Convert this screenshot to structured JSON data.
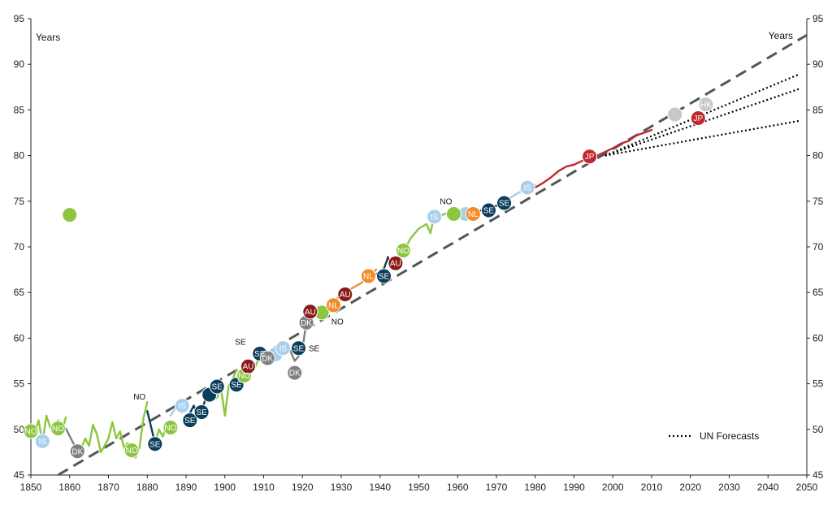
{
  "chart_data": {
    "type": "line",
    "title": "",
    "xlabel": "",
    "ylabel_left": "Years",
    "ylabel_right": "Years",
    "xlim": [
      1850,
      2050
    ],
    "ylim": [
      45,
      95
    ],
    "x_ticks": [
      "1850",
      "1860",
      "1870",
      "1880",
      "1890",
      "1900",
      "1910",
      "1920",
      "1930",
      "1940",
      "1950",
      "1960",
      "1970",
      "1980",
      "1990",
      "2000",
      "2010",
      "2020",
      "2030",
      "2040",
      "2050"
    ],
    "y_ticks_left": [
      "45",
      "50",
      "55",
      "60",
      "65",
      "70",
      "75",
      "80",
      "85",
      "90",
      "95"
    ],
    "y_ticks_right": [
      "45",
      "50",
      "55",
      "60",
      "65",
      "70",
      "75",
      "80",
      "85",
      "90",
      "95"
    ],
    "grid": false,
    "legend": {
      "position": "bottom-right",
      "label": "UN Forecasts"
    },
    "colors": {
      "NO": "#8cc63f",
      "IS": "#a9cfec",
      "DK": "#808080",
      "SE": "#0b3d5c",
      "AU": "#8b1a1a",
      "NL": "#f28c28",
      "JP": "#c0282d",
      "HK": "#c8c8c8",
      "trend": "#555555",
      "forecast": "#000000"
    },
    "series": [
      {
        "name": "NO",
        "x": [
          1850,
          1851,
          1852,
          1853,
          1854,
          1855,
          1856,
          1857,
          1858,
          1859
        ],
        "y": [
          50.0,
          49.6,
          51.0,
          48.5,
          51.5,
          50.2,
          50.0,
          51.0,
          49.8,
          51.3
        ]
      },
      {
        "name": "DK",
        "x": [
          1859,
          1862
        ],
        "y": [
          50.1,
          47.6
        ]
      },
      {
        "name": "NO",
        "x": [
          1862,
          1863,
          1864,
          1865,
          1866,
          1867,
          1868,
          1869,
          1870,
          1871,
          1872,
          1873,
          1874,
          1875,
          1876,
          1877,
          1878,
          1879,
          1880
        ],
        "y": [
          47.6,
          48.0,
          49.0,
          48.2,
          50.5,
          49.5,
          47.5,
          48.2,
          49.0,
          50.8,
          49.0,
          49.8,
          48.0,
          48.5,
          47.8,
          46.9,
          48.0,
          51.2,
          53.0
        ]
      },
      {
        "name": "SE",
        "x": [
          1880,
          1882
        ],
        "y": [
          52.0,
          48.5
        ]
      },
      {
        "name": "NO",
        "x": [
          1882,
          1883,
          1884,
          1885,
          1886
        ],
        "y": [
          48.5,
          50.0,
          49.2,
          50.5,
          50.3
        ]
      },
      {
        "name": "IS",
        "x": [
          1886,
          1888,
          1889,
          1890
        ],
        "y": [
          51.5,
          52.8,
          51.8,
          52.5
        ]
      },
      {
        "name": "SE",
        "x": [
          1890,
          1891,
          1892,
          1893,
          1894,
          1895,
          1896
        ],
        "y": [
          51.2,
          51.8,
          52.6,
          51.5,
          52.0,
          53.3,
          54.0
        ]
      },
      {
        "name": "NO",
        "x": [
          1896,
          1897,
          1898,
          1899,
          1900,
          1901,
          1902,
          1903
        ],
        "y": [
          54.0,
          53.2,
          53.5,
          54.5,
          51.5,
          54.8,
          55.5,
          56.5
        ]
      },
      {
        "name": "SE",
        "x": [
          1903,
          1904,
          1905,
          1906,
          1907
        ],
        "y": [
          55.0,
          55.5,
          56.5,
          57.0,
          56.4
        ]
      },
      {
        "name": "NO",
        "x": [
          1907,
          1908,
          1909
        ],
        "y": [
          56.4,
          57.0,
          58.2
        ]
      },
      {
        "name": "SE",
        "x": [
          1909,
          1910,
          1911
        ],
        "y": [
          58.3,
          57.5,
          58.4
        ]
      },
      {
        "name": "IS",
        "x": [
          1911,
          1912,
          1913,
          1914,
          1915
        ],
        "y": [
          58.4,
          57.6,
          58.5,
          57.8,
          58.9
        ]
      },
      {
        "name": "DK",
        "x": [
          1915,
          1916,
          1917,
          1918,
          1919
        ],
        "y": [
          58.9,
          59.5,
          58.5,
          57.5,
          58.0
        ]
      },
      {
        "name": "SE",
        "x": [
          1918,
          1919,
          1920
        ],
        "y": [
          58.5,
          59.2,
          58.8
        ]
      },
      {
        "name": "DK",
        "x": [
          1920,
          1921
        ],
        "y": [
          58.8,
          61.8
        ]
      },
      {
        "name": "NO",
        "x": [
          1921,
          1922,
          1924,
          1926,
          1927
        ],
        "y": [
          62.6,
          62.9,
          63.2,
          62.6,
          62.9
        ]
      },
      {
        "name": "AU",
        "x": [
          1921,
          1923,
          1925,
          1927
        ],
        "y": [
          63.0,
          63.1,
          62.9,
          63.0
        ]
      },
      {
        "name": "NL",
        "x": [
          1927,
          1930,
          1935,
          1937,
          1939
        ],
        "y": [
          63.5,
          64.8,
          66.0,
          66.8,
          67.5
        ]
      },
      {
        "name": "SE",
        "x": [
          1939,
          1941,
          1942
        ],
        "y": [
          67.0,
          67.6,
          68.8
        ]
      },
      {
        "name": "AU",
        "x": [
          1942,
          1943,
          1944
        ],
        "y": [
          68.9,
          67.8,
          68.2
        ]
      },
      {
        "name": "NO",
        "x": [
          1944,
          1946,
          1948,
          1950,
          1952,
          1953,
          1954,
          1955,
          1956,
          1958,
          1960
        ],
        "y": [
          68.2,
          69.5,
          71.0,
          72.0,
          72.5,
          71.5,
          73.5,
          73.0,
          73.5,
          73.8,
          73.6
        ]
      },
      {
        "name": "IS",
        "x": [
          1960,
          1961,
          1962
        ],
        "y": [
          73.6,
          73.8,
          73.7
        ]
      },
      {
        "name": "NL",
        "x": [
          1962,
          1963,
          1964
        ],
        "y": [
          73.7,
          73.6,
          73.9
        ]
      },
      {
        "name": "SE",
        "x": [
          1964,
          1967,
          1970,
          1972
        ],
        "y": [
          73.9,
          74.0,
          74.5,
          74.8
        ]
      },
      {
        "name": "IS",
        "x": [
          1972,
          1974,
          1976,
          1978,
          1980
        ],
        "y": [
          74.8,
          75.5,
          76.0,
          76.5,
          76.8
        ]
      },
      {
        "name": "JP",
        "x": [
          1980,
          1982,
          1984,
          1986,
          1988,
          1990,
          1992,
          1994,
          1996,
          1998,
          2000,
          2002,
          2004,
          2006,
          2008,
          2010
        ],
        "y": [
          76.5,
          77.0,
          77.6,
          78.3,
          78.8,
          79.0,
          79.4,
          79.6,
          80.0,
          80.4,
          80.8,
          81.3,
          81.6,
          82.2,
          82.5,
          82.8
        ]
      }
    ],
    "markers": [
      {
        "label": "NO",
        "series": "NO",
        "x": 1850,
        "y": 49.8
      },
      {
        "label": "IS",
        "series": "IS",
        "x": 1853,
        "y": 48.7
      },
      {
        "label": "NO",
        "series": "NO",
        "x": 1857,
        "y": 50.1
      },
      {
        "label": "DK",
        "series": "DK",
        "x": 1862,
        "y": 47.6
      },
      {
        "label": "NO",
        "series": "NO",
        "x": 1876,
        "y": 47.7
      },
      {
        "label": "SE",
        "series": "SE",
        "x": 1882,
        "y": 48.4
      },
      {
        "label": "NO",
        "series": "NO",
        "x": 1886,
        "y": 50.2
      },
      {
        "label": "IS",
        "series": "IS",
        "x": 1889,
        "y": 52.6
      },
      {
        "label": "SE",
        "series": "SE",
        "x": 1891,
        "y": 51.0
      },
      {
        "label": "SE",
        "series": "SE",
        "x": 1894,
        "y": 51.9
      },
      {
        "label": "SE",
        "series": "SE",
        "x": 1898,
        "y": 54.7
      },
      {
        "label": "SE",
        "series": "SE",
        "x": 1903,
        "y": 54.9
      },
      {
        "label": "NO",
        "series": "NO",
        "x": 1905,
        "y": 55.9
      },
      {
        "label": "AU",
        "series": "AU",
        "x": 1906,
        "y": 56.9
      },
      {
        "label": "SE",
        "series": "SE",
        "x": 1909,
        "y": 58.3
      },
      {
        "label": "DK",
        "series": "DK",
        "x": 1911,
        "y": 57.8
      },
      {
        "label": "IS",
        "series": "IS",
        "x": 1915,
        "y": 58.9
      },
      {
        "label": "DK",
        "series": "DK",
        "x": 1918,
        "y": 56.2
      },
      {
        "label": "SE",
        "series": "SE",
        "x": 1919,
        "y": 58.9
      },
      {
        "label": "DK",
        "series": "DK",
        "x": 1921,
        "y": 61.7
      },
      {
        "label": "AU",
        "series": "AU",
        "x": 1922,
        "y": 62.9
      },
      {
        "label": "NL",
        "series": "NL",
        "x": 1928,
        "y": 63.6
      },
      {
        "label": "AU",
        "series": "AU",
        "x": 1931,
        "y": 64.8
      },
      {
        "label": "NL",
        "series": "NL",
        "x": 1937,
        "y": 66.8
      },
      {
        "label": "SE",
        "series": "SE",
        "x": 1941,
        "y": 66.8
      },
      {
        "label": "AU",
        "series": "AU",
        "x": 1944,
        "y": 68.2
      },
      {
        "label": "NO",
        "series": "NO",
        "x": 1946,
        "y": 69.6
      },
      {
        "label": "IS",
        "series": "IS",
        "x": 1954,
        "y": 73.3
      },
      {
        "label": "NL",
        "series": "NL",
        "x": 1964,
        "y": 73.6
      },
      {
        "label": "SE",
        "series": "SE",
        "x": 1968,
        "y": 74.0
      },
      {
        "label": "SE",
        "series": "SE",
        "x": 1972,
        "y": 74.8
      },
      {
        "label": "IS",
        "series": "IS",
        "x": 1978,
        "y": 76.5
      },
      {
        "label": "JP",
        "series": "JP",
        "x": 1994,
        "y": 79.9
      },
      {
        "label": "HK",
        "series": "HK",
        "x": 2024,
        "y": 85.6
      },
      {
        "label": "JP",
        "series": "JP",
        "x": 2022,
        "y": 84.1
      }
    ],
    "unlabeled_markers": [
      {
        "series": "NO",
        "x": 1860,
        "y": 73.5
      },
      {
        "series": "NO",
        "x": 1896,
        "y": 53.8
      },
      {
        "series": "NO",
        "x": 1925,
        "y": 62.8
      },
      {
        "series": "IS",
        "x": 1913,
        "y": 58.2
      },
      {
        "series": "IS",
        "x": 1962,
        "y": 73.6
      },
      {
        "series": "NO",
        "x": 1959,
        "y": 73.6
      },
      {
        "series": "HK",
        "x": 2016,
        "y": 84.5
      },
      {
        "series": "SE",
        "x": 1896,
        "y": 53.8
      }
    ],
    "outside_labels": [
      {
        "label": "NO",
        "x": 1878,
        "y": 53.6
      },
      {
        "label": "SE",
        "x": 1904,
        "y": 59.6
      },
      {
        "label": "SE",
        "x": 1923,
        "y": 58.9
      },
      {
        "label": "NO",
        "x": 1929,
        "y": 61.8
      },
      {
        "label": "NO",
        "x": 1957,
        "y": 75.0
      }
    ],
    "trend_line": {
      "name": "trend",
      "x": [
        1857,
        2050
      ],
      "y": [
        45.0,
        93.2
      ]
    },
    "forecasts": [
      {
        "name": "UN Forecasts",
        "x": [
          1998,
          2048
        ],
        "y": [
          80.0,
          88.9
        ]
      },
      {
        "name": "UN Forecasts",
        "x": [
          1998,
          2048
        ],
        "y": [
          80.0,
          87.3
        ]
      },
      {
        "name": "UN Forecasts",
        "x": [
          1998,
          2048
        ],
        "y": [
          80.0,
          83.8
        ]
      }
    ]
  }
}
